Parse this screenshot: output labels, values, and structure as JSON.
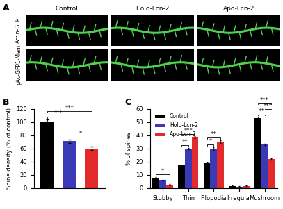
{
  "chart_data": [
    {
      "type": "image",
      "panel": "A",
      "columns": [
        "Control",
        "Holo-Lcn-2",
        "Apo-Lcn-2"
      ],
      "rows": [
        "Actin-GFP",
        "pAc-GFP1-Mem"
      ]
    },
    {
      "type": "bar",
      "panel": "B",
      "categories": [
        null,
        null,
        null
      ],
      "values": [
        100,
        71,
        60
      ],
      "errors": [
        4,
        2.5,
        2.5
      ],
      "colors": [
        "#000000",
        "#3a3ab8",
        "#e32b2b"
      ],
      "y_label": "Spine density (% of control)",
      "ylim": [
        0,
        120
      ],
      "yticks": [
        0,
        20,
        40,
        60,
        80,
        100,
        120
      ],
      "tick_labels": "y",
      "significance": [
        {
          "pair": [
            1,
            2
          ],
          "label": "*"
        },
        {
          "pair": [
            0,
            1
          ],
          "label": "***"
        },
        {
          "pair": [
            0,
            2
          ],
          "label": "***"
        }
      ]
    },
    {
      "type": "bar",
      "panel": "C",
      "categories": [
        "Stubby",
        "Thin",
        "Filopodia",
        "Irregular",
        "Mushroom"
      ],
      "series": [
        {
          "name": "Control",
          "color": "#000000",
          "values": [
            8,
            17,
            19,
            1.5,
            53
          ],
          "errors": [
            0.5,
            0.5,
            0.5,
            0.3,
            1
          ]
        },
        {
          "name": "Holo-Lcn-2",
          "color": "#3a3ab8",
          "values": [
            6,
            30,
            30,
            1,
            33
          ],
          "errors": [
            0.5,
            0.6,
            1,
            0.3,
            0.6
          ]
        },
        {
          "name": "Apo-Lcn-2",
          "color": "#e32b2b",
          "values": [
            2.5,
            38.5,
            35,
            1.5,
            22
          ],
          "errors": [
            0.4,
            0.7,
            1.2,
            0.3,
            0.5
          ]
        }
      ],
      "y_label": "% of spines",
      "ylim": [
        0,
        60
      ],
      "yticks": [
        0,
        10,
        20,
        30,
        40,
        50,
        60
      ],
      "legend": "upper left",
      "significance": [
        {
          "category": "Stubby",
          "pair": [
            0,
            2
          ],
          "label": "*"
        },
        {
          "category": "Thin",
          "pair": [
            0,
            1
          ],
          "label": "**"
        },
        {
          "category": "Thin",
          "pair": [
            0,
            2
          ],
          "label": "***"
        },
        {
          "category": "Filopodia",
          "pair": [
            0,
            1
          ],
          "label": "*"
        },
        {
          "category": "Filopodia",
          "pair": [
            0,
            2
          ],
          "label": "**"
        },
        {
          "category": "Mushroom",
          "pair": [
            0,
            1
          ],
          "label": "**"
        },
        {
          "category": "Mushroom",
          "pair": [
            1,
            2
          ],
          "label": "***"
        },
        {
          "category": "Mushroom",
          "pair": [
            0,
            2
          ],
          "label": "***"
        }
      ]
    }
  ]
}
